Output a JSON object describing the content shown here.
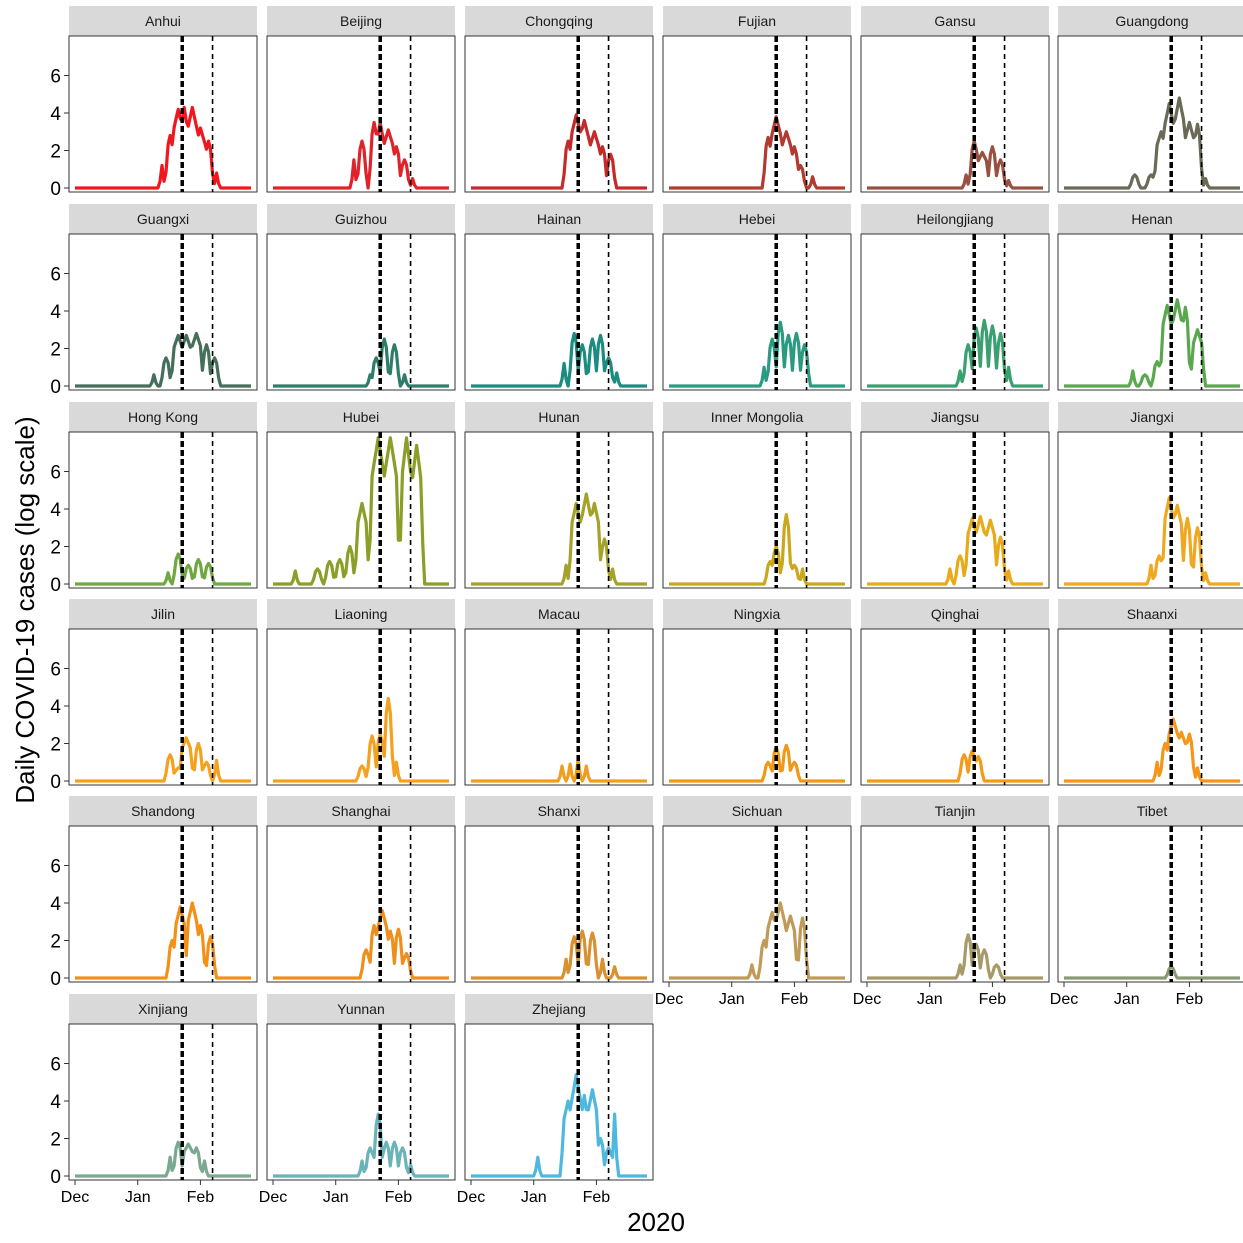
{
  "chart_data": {
    "type": "line",
    "title": "",
    "xlabel": "2020",
    "ylabel": "Daily COVID-19 cases (log scale)",
    "x_axis": {
      "min_day": 0,
      "max_day": 87,
      "ticks": [
        {
          "label": "Dec",
          "day": 0
        },
        {
          "label": "Jan",
          "day": 31
        },
        {
          "label": "Feb",
          "day": 62
        }
      ]
    },
    "y_axis": {
      "min": 0,
      "max": 8,
      "ticks": [
        0,
        2,
        4,
        6
      ]
    },
    "reference_lines": [
      {
        "name": "thick",
        "day": 53,
        "style": "bold-dashed"
      },
      {
        "name": "thin",
        "day": 68,
        "style": "dashed"
      }
    ],
    "grid": false,
    "legend": "none",
    "panels": [
      {
        "name": "Anhui",
        "color": "#F0171E",
        "peaks": [
          [
            43,
            1.2,
            1
          ],
          [
            47,
            2.8,
            2
          ],
          [
            51,
            4.2,
            3
          ],
          [
            54,
            4.3,
            2
          ],
          [
            58,
            4.3,
            3
          ],
          [
            62,
            3.2,
            3
          ],
          [
            66,
            2.5,
            2
          ],
          [
            70,
            0.8,
            1
          ]
        ]
      },
      {
        "name": "Beijing",
        "color": "#E0232A",
        "peaks": [
          [
            40,
            1.5,
            1
          ],
          [
            44,
            2.5,
            2
          ],
          [
            50,
            3.5,
            2
          ],
          [
            53,
            3.5,
            2
          ],
          [
            57,
            3.1,
            3
          ],
          [
            61,
            2.2,
            2
          ],
          [
            65,
            1.5,
            2
          ],
          [
            69,
            0.5,
            1
          ]
        ]
      },
      {
        "name": "Chongqing",
        "color": "#C52A2A",
        "peaks": [
          [
            48,
            2.5,
            2
          ],
          [
            52,
            3.9,
            3
          ],
          [
            56,
            3.6,
            3
          ],
          [
            61,
            3.0,
            3
          ],
          [
            65,
            2.2,
            2
          ],
          [
            69,
            1.8,
            2
          ]
        ]
      },
      {
        "name": "Fujian",
        "color": "#B23A30",
        "peaks": [
          [
            49,
            2.7,
            2
          ],
          [
            53,
            3.8,
            3
          ],
          [
            58,
            3.0,
            3
          ],
          [
            62,
            2.2,
            2
          ],
          [
            65,
            1.2,
            2
          ],
          [
            71,
            0.6,
            1
          ]
        ]
      },
      {
        "name": "Gansu",
        "color": "#9A5040",
        "peaks": [
          [
            49,
            0.7,
            1
          ],
          [
            53,
            2.5,
            2
          ],
          [
            57,
            1.9,
            3
          ],
          [
            62,
            2.2,
            2
          ],
          [
            66,
            1.5,
            2
          ],
          [
            70,
            0.4,
            1
          ]
        ]
      },
      {
        "name": "Guangdong",
        "color": "#6A6A56",
        "peaks": [
          [
            35,
            0.7,
            2
          ],
          [
            43,
            0.7,
            2
          ],
          [
            48,
            3.0,
            3
          ],
          [
            52,
            4.5,
            3
          ],
          [
            57,
            4.8,
            3
          ],
          [
            62,
            3.5,
            3
          ],
          [
            66,
            3.4,
            2
          ],
          [
            70,
            0.5,
            1
          ]
        ]
      },
      {
        "name": "Guangxi",
        "color": "#456F5A",
        "peaks": [
          [
            39,
            0.6,
            1
          ],
          [
            45,
            1.5,
            2
          ],
          [
            51,
            2.7,
            3
          ],
          [
            55,
            2.7,
            3
          ],
          [
            60,
            2.8,
            3
          ],
          [
            65,
            2.2,
            2
          ],
          [
            69,
            1.5,
            2
          ]
        ]
      },
      {
        "name": "Guizhou",
        "color": "#2E7D6A",
        "peaks": [
          [
            48,
            0.6,
            1
          ],
          [
            51,
            1.5,
            2
          ],
          [
            55,
            2.5,
            2
          ],
          [
            60,
            2.2,
            2
          ],
          [
            65,
            0.6,
            1
          ]
        ]
      },
      {
        "name": "Hainan",
        "color": "#1A8C80",
        "peaks": [
          [
            46,
            1.2,
            1
          ],
          [
            51,
            2.8,
            2
          ],
          [
            55,
            2.2,
            2
          ],
          [
            60,
            2.5,
            2
          ],
          [
            64,
            2.7,
            2
          ],
          [
            68,
            1.5,
            2
          ],
          [
            72,
            0.7,
            1
          ]
        ]
      },
      {
        "name": "Hebei",
        "color": "#2A9A80",
        "peaks": [
          [
            47,
            1.0,
            1
          ],
          [
            51,
            2.5,
            2
          ],
          [
            55,
            3.4,
            2
          ],
          [
            59,
            2.7,
            2
          ],
          [
            63,
            2.8,
            2
          ],
          [
            67,
            2.2,
            2
          ]
        ]
      },
      {
        "name": "Heilongjiang",
        "color": "#3AA070",
        "peaks": [
          [
            46,
            0.8,
            1
          ],
          [
            50,
            2.2,
            2
          ],
          [
            54,
            3.1,
            2
          ],
          [
            58,
            3.5,
            2
          ],
          [
            62,
            3.2,
            2
          ],
          [
            66,
            2.8,
            2
          ],
          [
            70,
            1.0,
            1
          ]
        ]
      },
      {
        "name": "Henan",
        "color": "#5AA84E",
        "peaks": [
          [
            34,
            0.8,
            1
          ],
          [
            40,
            0.6,
            2
          ],
          [
            46,
            1.3,
            2
          ],
          [
            51,
            4.3,
            3
          ],
          [
            56,
            4.6,
            3
          ],
          [
            60,
            4.2,
            2
          ],
          [
            66,
            3.0,
            3
          ]
        ]
      },
      {
        "name": "Hong Kong",
        "color": "#6FA840",
        "peaks": [
          [
            46,
            0.6,
            1
          ],
          [
            51,
            1.6,
            2
          ],
          [
            56,
            1.0,
            2
          ],
          [
            61,
            1.3,
            2
          ],
          [
            66,
            1.1,
            2
          ]
        ]
      },
      {
        "name": "Hubei",
        "color": "#8A9E28",
        "peaks": [
          [
            11,
            0.7,
            1
          ],
          [
            22,
            0.8,
            2
          ],
          [
            28,
            1.2,
            2
          ],
          [
            33,
            1.3,
            2
          ],
          [
            38,
            2.0,
            2
          ],
          [
            44,
            4.3,
            3
          ],
          [
            52,
            7.8,
            4
          ],
          [
            58,
            7.8,
            4
          ],
          [
            66,
            7.8,
            3
          ],
          [
            71,
            7.4,
            3
          ]
        ]
      },
      {
        "name": "Hunan",
        "color": "#A4A228",
        "peaks": [
          [
            47,
            1.0,
            1
          ],
          [
            52,
            4.3,
            3
          ],
          [
            57,
            4.8,
            3
          ],
          [
            61,
            4.3,
            3
          ],
          [
            66,
            2.4,
            2
          ],
          [
            70,
            0.8,
            1
          ]
        ]
      },
      {
        "name": "Inner Mongolia",
        "color": "#C9A81E",
        "peaks": [
          [
            50,
            1.2,
            2
          ],
          [
            53,
            2.0,
            2
          ],
          [
            58,
            3.7,
            2
          ],
          [
            62,
            1.0,
            2
          ],
          [
            66,
            0.8,
            1
          ]
        ]
      },
      {
        "name": "Jiangsu",
        "color": "#E8AA18",
        "peaks": [
          [
            41,
            0.8,
            1
          ],
          [
            46,
            1.5,
            2
          ],
          [
            52,
            3.5,
            3
          ],
          [
            56,
            3.6,
            3
          ],
          [
            61,
            3.4,
            3
          ],
          [
            66,
            2.5,
            2
          ],
          [
            70,
            0.7,
            1
          ]
        ]
      },
      {
        "name": "Jiangxi",
        "color": "#F0A820",
        "peaks": [
          [
            43,
            1.0,
            1
          ],
          [
            47,
            1.5,
            2
          ],
          [
            52,
            4.6,
            3
          ],
          [
            56,
            4.2,
            3
          ],
          [
            61,
            3.5,
            2
          ],
          [
            66,
            3.0,
            2
          ],
          [
            70,
            0.6,
            1
          ]
        ]
      },
      {
        "name": "Jilin",
        "color": "#F5A120",
        "peaks": [
          [
            47,
            1.4,
            2
          ],
          [
            51,
            0.7,
            2
          ],
          [
            55,
            2.3,
            3
          ],
          [
            61,
            2.0,
            2
          ],
          [
            65,
            1.0,
            2
          ],
          [
            70,
            1.1,
            1
          ]
        ]
      },
      {
        "name": "Liaoning",
        "color": "#F5A020",
        "peaks": [
          [
            44,
            0.8,
            2
          ],
          [
            49,
            2.4,
            2
          ],
          [
            53,
            2.5,
            2
          ],
          [
            57,
            4.4,
            2
          ],
          [
            61,
            1.0,
            1
          ]
        ]
      },
      {
        "name": "Macau",
        "color": "#F09E20",
        "peaks": [
          [
            45,
            0.8,
            1
          ],
          [
            49,
            0.9,
            1
          ],
          [
            53,
            1.2,
            1
          ],
          [
            57,
            0.8,
            1
          ]
        ]
      },
      {
        "name": "Ningxia",
        "color": "#F09818",
        "peaks": [
          [
            49,
            1.0,
            2
          ],
          [
            53,
            1.8,
            2
          ],
          [
            58,
            1.9,
            2
          ],
          [
            62,
            1.0,
            2
          ]
        ]
      },
      {
        "name": "Qinghai",
        "color": "#F59A18",
        "peaks": [
          [
            48,
            1.4,
            2
          ],
          [
            52,
            1.6,
            2
          ],
          [
            55,
            1.3,
            2
          ]
        ]
      },
      {
        "name": "Shaanxi",
        "color": "#F5951A",
        "peaks": [
          [
            46,
            1.0,
            1
          ],
          [
            50,
            2.0,
            2
          ],
          [
            54,
            3.3,
            3
          ],
          [
            58,
            2.6,
            3
          ],
          [
            62,
            2.5,
            2
          ],
          [
            66,
            0.7,
            1
          ]
        ]
      },
      {
        "name": "Shandong",
        "color": "#F39018",
        "peaks": [
          [
            48,
            2.0,
            2
          ],
          [
            52,
            3.8,
            3
          ],
          [
            58,
            4.0,
            3
          ],
          [
            62,
            2.8,
            2
          ],
          [
            67,
            2.2,
            2
          ]
        ]
      },
      {
        "name": "Shanghai",
        "color": "#EF8E1C",
        "peaks": [
          [
            46,
            1.5,
            2
          ],
          [
            50,
            2.8,
            2
          ],
          [
            54,
            3.6,
            3
          ],
          [
            58,
            2.5,
            2
          ],
          [
            62,
            2.6,
            2
          ],
          [
            66,
            1.3,
            2
          ]
        ]
      },
      {
        "name": "Shanxi",
        "color": "#D99030",
        "peaks": [
          [
            47,
            1.0,
            1
          ],
          [
            51,
            2.2,
            2
          ],
          [
            55,
            2.5,
            2
          ],
          [
            60,
            2.4,
            2
          ],
          [
            65,
            1.0,
            1
          ],
          [
            71,
            0.6,
            1
          ]
        ]
      },
      {
        "name": "Sichuan",
        "color": "#C09A58",
        "peaks": [
          [
            41,
            0.7,
            1
          ],
          [
            47,
            2.0,
            2
          ],
          [
            51,
            3.5,
            3
          ],
          [
            55,
            4.0,
            3
          ],
          [
            60,
            3.3,
            3
          ],
          [
            66,
            3.2,
            2
          ]
        ]
      },
      {
        "name": "Tianjin",
        "color": "#A89A68",
        "peaks": [
          [
            46,
            0.7,
            1
          ],
          [
            50,
            2.3,
            2
          ],
          [
            54,
            1.8,
            2
          ],
          [
            58,
            1.5,
            2
          ],
          [
            64,
            0.7,
            2
          ]
        ]
      },
      {
        "name": "Tibet",
        "color": "#8A9A70",
        "peaks": [
          [
            53,
            0.6,
            2
          ]
        ]
      },
      {
        "name": "Xinjiang",
        "color": "#7AA890",
        "peaks": [
          [
            47,
            1.0,
            1
          ],
          [
            51,
            1.8,
            2
          ],
          [
            56,
            1.7,
            3
          ],
          [
            60,
            1.5,
            2
          ],
          [
            64,
            0.8,
            1
          ]
        ]
      },
      {
        "name": "Yunnan",
        "color": "#6AB3B8",
        "peaks": [
          [
            44,
            0.8,
            1
          ],
          [
            48,
            1.5,
            2
          ],
          [
            52,
            3.3,
            2
          ],
          [
            56,
            1.8,
            2
          ],
          [
            60,
            1.8,
            2
          ],
          [
            64,
            1.5,
            2
          ],
          [
            68,
            0.6,
            1
          ]
        ]
      },
      {
        "name": "Zhejiang",
        "color": "#4FB8DE",
        "peaks": [
          [
            33,
            1.0,
            1
          ],
          [
            48,
            4.0,
            3
          ],
          [
            52,
            5.4,
            3
          ],
          [
            56,
            4.3,
            2
          ],
          [
            60,
            4.6,
            3
          ],
          [
            64,
            2.0,
            2
          ],
          [
            68,
            1.5,
            2
          ],
          [
            71,
            3.3,
            1
          ]
        ]
      }
    ]
  }
}
